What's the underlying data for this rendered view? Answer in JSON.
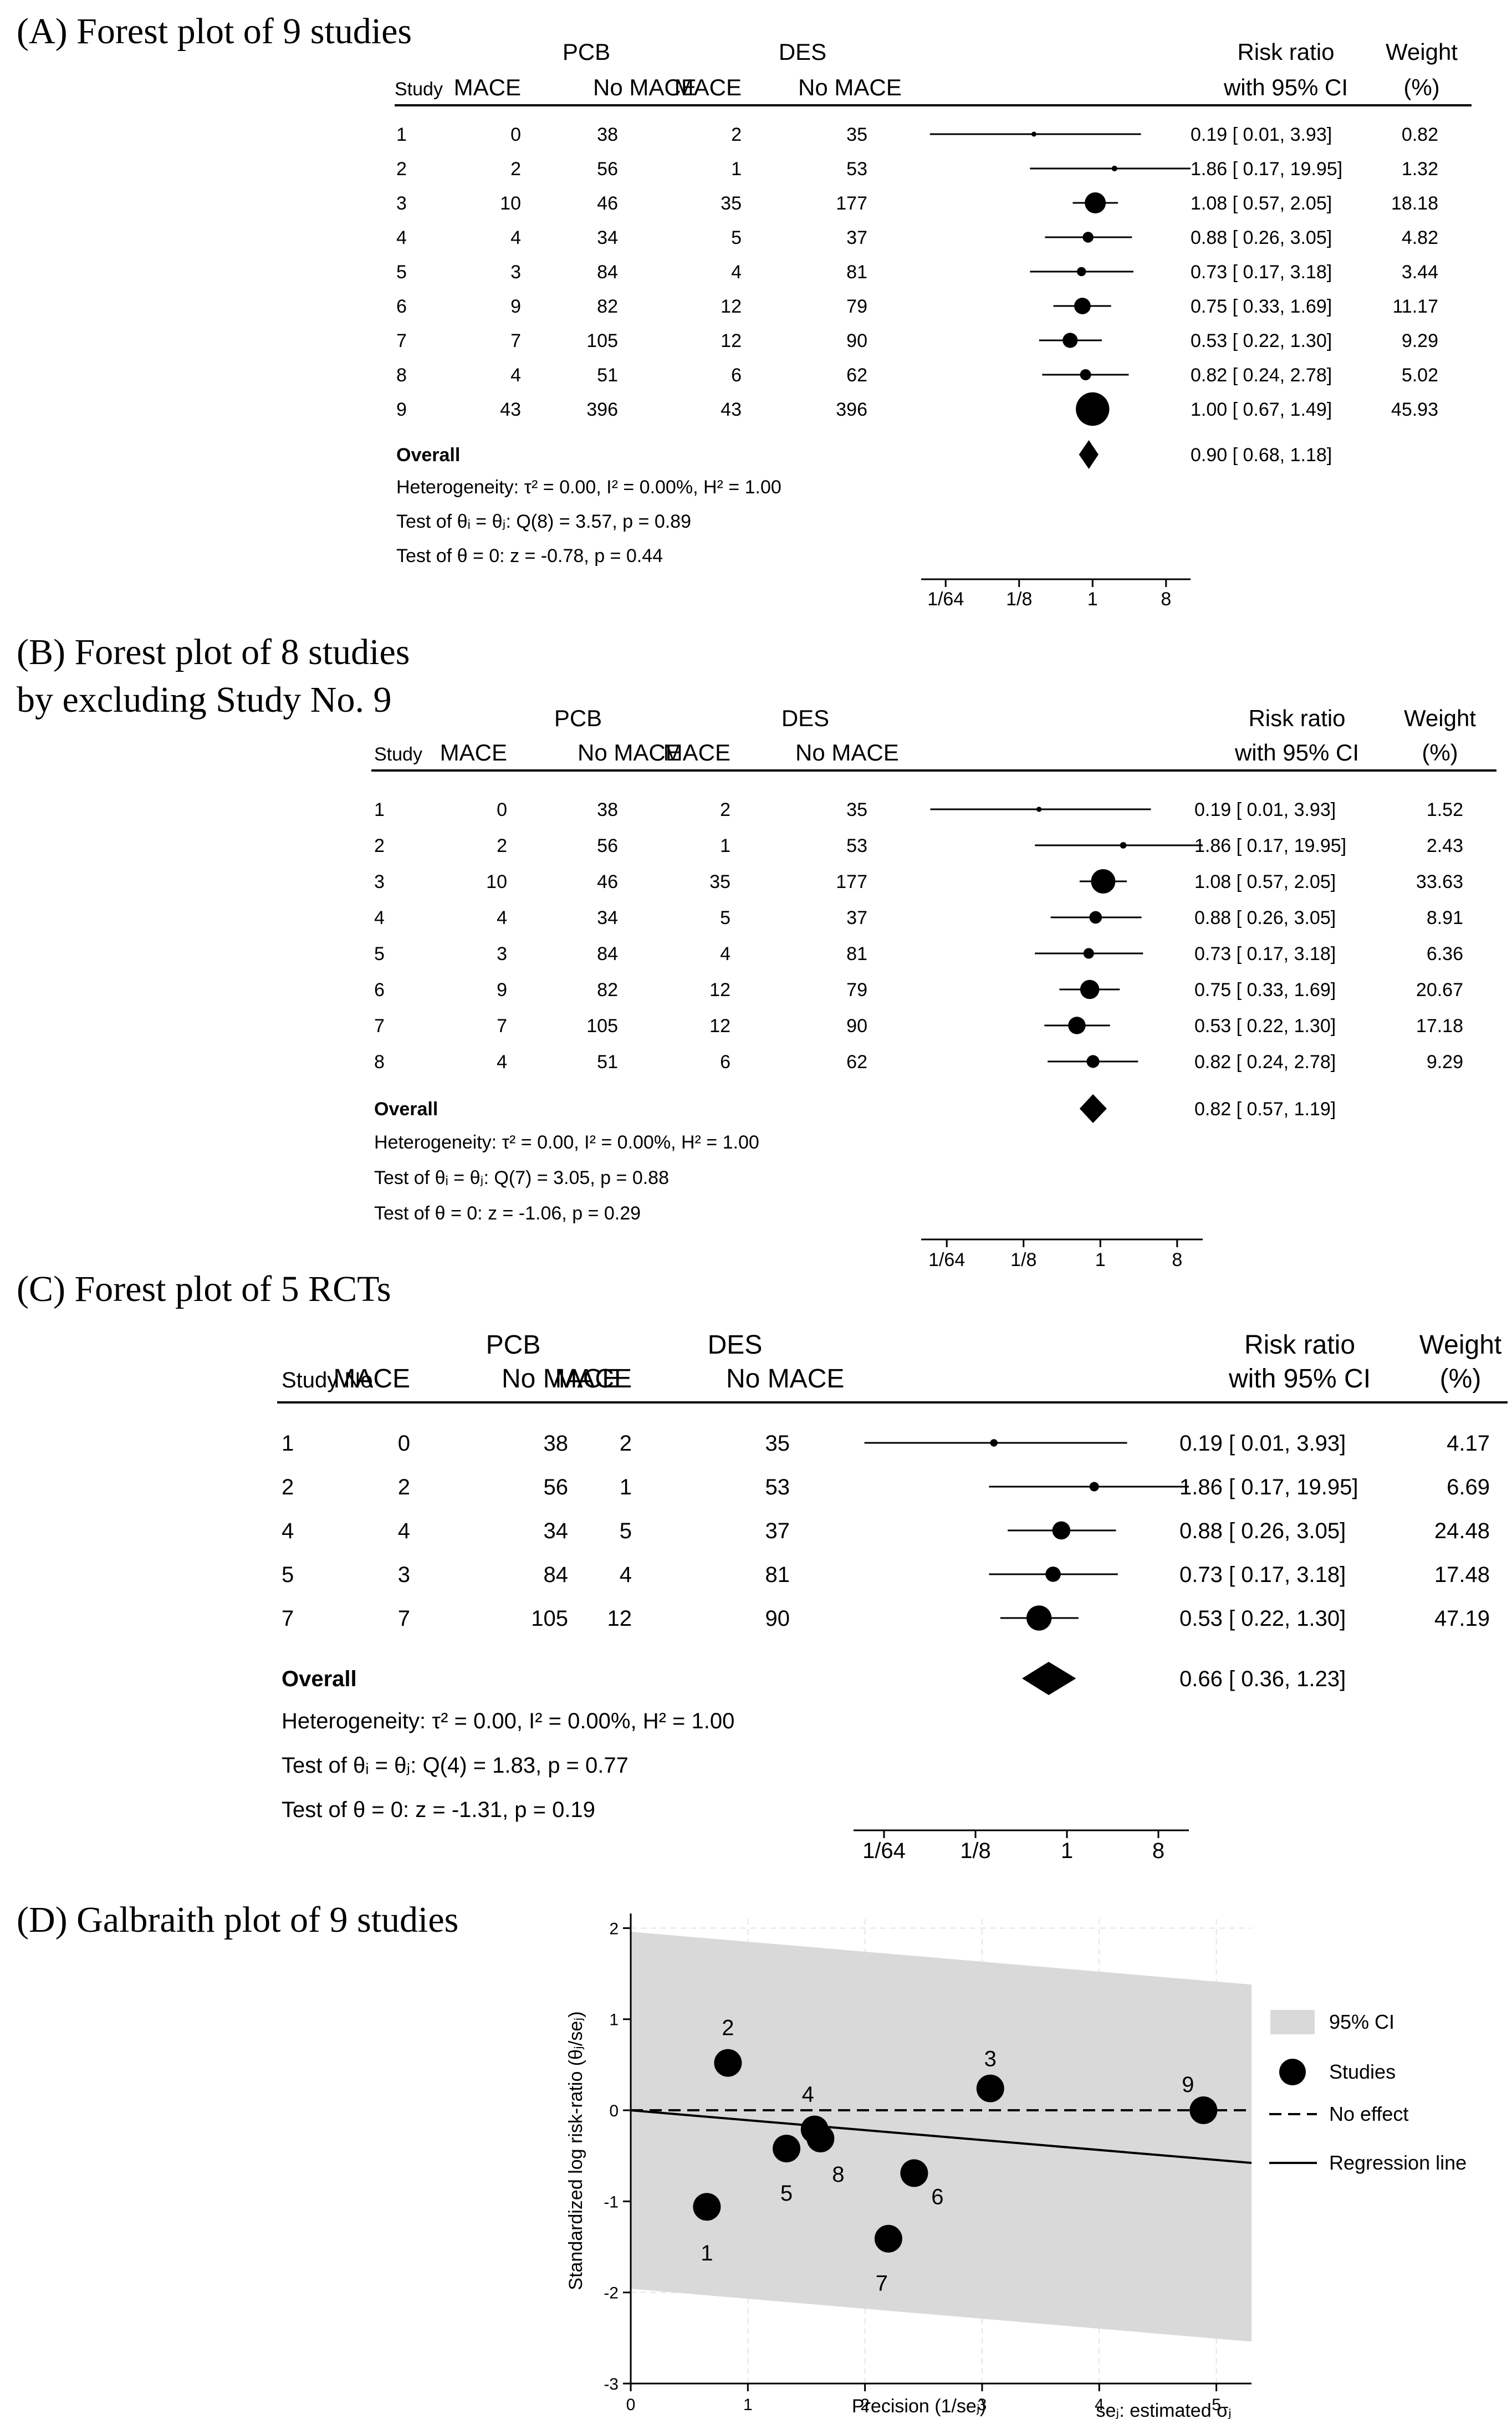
{
  "chart_data": [
    {
      "type": "forest",
      "panel_title": "(A) Forest plot of 9 studies",
      "group_headers": {
        "pcb": "PCB",
        "des": "DES"
      },
      "columns": {
        "study": "Study",
        "pcb_mace": "MACE",
        "pcb_no_mace": "No MACE",
        "des_mace": "MACE",
        "des_no_mace": "No MACE",
        "rr_line1": "Risk ratio",
        "rr_line2": "with 95% CI",
        "wt_line1": "Weight",
        "wt_line2": "(%)"
      },
      "studies": [
        {
          "study": "1",
          "pcb_mace": "0",
          "pcb_no_mace": "38",
          "des_mace": "2",
          "des_no_mace": "35",
          "rr": 0.19,
          "lo": 0.01,
          "hi": 3.93,
          "rr_text": "0.19 [ 0.01,    3.93]",
          "weight": 0.82,
          "weight_text": "0.82"
        },
        {
          "study": "2",
          "pcb_mace": "2",
          "pcb_no_mace": "56",
          "des_mace": "1",
          "des_no_mace": "53",
          "rr": 1.86,
          "lo": 0.17,
          "hi": 19.95,
          "rr_text": "1.86 [ 0.17,  19.95]",
          "weight": 1.32,
          "weight_text": "1.32"
        },
        {
          "study": "3",
          "pcb_mace": "10",
          "pcb_no_mace": "46",
          "des_mace": "35",
          "des_no_mace": "177",
          "rr": 1.08,
          "lo": 0.57,
          "hi": 2.05,
          "rr_text": "1.08 [ 0.57,    2.05]",
          "weight": 18.18,
          "weight_text": "18.18"
        },
        {
          "study": "4",
          "pcb_mace": "4",
          "pcb_no_mace": "34",
          "des_mace": "5",
          "des_no_mace": "37",
          "rr": 0.88,
          "lo": 0.26,
          "hi": 3.05,
          "rr_text": "0.88 [ 0.26,    3.05]",
          "weight": 4.82,
          "weight_text": "4.82"
        },
        {
          "study": "5",
          "pcb_mace": "3",
          "pcb_no_mace": "84",
          "des_mace": "4",
          "des_no_mace": "81",
          "rr": 0.73,
          "lo": 0.17,
          "hi": 3.18,
          "rr_text": "0.73 [ 0.17,    3.18]",
          "weight": 3.44,
          "weight_text": "3.44"
        },
        {
          "study": "6",
          "pcb_mace": "9",
          "pcb_no_mace": "82",
          "des_mace": "12",
          "des_no_mace": "79",
          "rr": 0.75,
          "lo": 0.33,
          "hi": 1.69,
          "rr_text": "0.75 [ 0.33,    1.69]",
          "weight": 11.17,
          "weight_text": "11.17"
        },
        {
          "study": "7",
          "pcb_mace": "7",
          "pcb_no_mace": "105",
          "des_mace": "12",
          "des_no_mace": "90",
          "rr": 0.53,
          "lo": 0.22,
          "hi": 1.3,
          "rr_text": "0.53 [ 0.22,    1.30]",
          "weight": 9.29,
          "weight_text": "9.29"
        },
        {
          "study": "8",
          "pcb_mace": "4",
          "pcb_no_mace": "51",
          "des_mace": "6",
          "des_no_mace": "62",
          "rr": 0.82,
          "lo": 0.24,
          "hi": 2.78,
          "rr_text": "0.82 [ 0.24,    2.78]",
          "weight": 5.02,
          "weight_text": "5.02"
        },
        {
          "study": "9",
          "pcb_mace": "43",
          "pcb_no_mace": "396",
          "des_mace": "43",
          "des_no_mace": "396",
          "rr": 1.0,
          "lo": 0.67,
          "hi": 1.49,
          "rr_text": "1.00 [ 0.67,    1.49]",
          "weight": 45.93,
          "weight_text": "45.93"
        }
      ],
      "overall": {
        "label": "Overall",
        "rr": 0.9,
        "lo": 0.68,
        "hi": 1.18,
        "rr_text": "0.90 [ 0.68,    1.18]"
      },
      "stats": [
        "Heterogeneity: τ² = 0.00, I² = 0.00%, H² = 1.00",
        "Test of θᵢ = θⱼ: Q(8) = 3.57, p = 0.89",
        "Test of θ = 0: z = -0.78, p = 0.44"
      ],
      "axis": {
        "scale": "log2",
        "range": [
          0.0078125,
          16
        ],
        "ticks": [
          0.015625,
          0.125,
          1,
          8
        ],
        "tick_labels": [
          "1/64",
          "1/8",
          "1",
          "8"
        ]
      }
    },
    {
      "type": "forest",
      "panel_title": "(B) Forest plot of 8 studies",
      "panel_title_line2": "by excluding Study No. 9",
      "group_headers": {
        "pcb": "PCB",
        "des": "DES"
      },
      "columns": {
        "study": "Study",
        "pcb_mace": "MACE",
        "pcb_no_mace": "No MACE",
        "des_mace": "MACE",
        "des_no_mace": "No MACE",
        "rr_line1": "Risk ratio",
        "rr_line2": "with 95% CI",
        "wt_line1": "Weight",
        "wt_line2": "(%)"
      },
      "studies": [
        {
          "study": "1",
          "pcb_mace": "0",
          "pcb_no_mace": "38",
          "des_mace": "2",
          "des_no_mace": "35",
          "rr": 0.19,
          "lo": 0.01,
          "hi": 3.93,
          "rr_text": "0.19 [ 0.01,    3.93]",
          "weight": 1.52,
          "weight_text": "1.52"
        },
        {
          "study": "2",
          "pcb_mace": "2",
          "pcb_no_mace": "56",
          "des_mace": "1",
          "des_no_mace": "53",
          "rr": 1.86,
          "lo": 0.17,
          "hi": 19.95,
          "rr_text": "1.86 [ 0.17,  19.95]",
          "weight": 2.43,
          "weight_text": "2.43"
        },
        {
          "study": "3",
          "pcb_mace": "10",
          "pcb_no_mace": "46",
          "des_mace": "35",
          "des_no_mace": "177",
          "rr": 1.08,
          "lo": 0.57,
          "hi": 2.05,
          "rr_text": "1.08 [ 0.57,    2.05]",
          "weight": 33.63,
          "weight_text": "33.63"
        },
        {
          "study": "4",
          "pcb_mace": "4",
          "pcb_no_mace": "34",
          "des_mace": "5",
          "des_no_mace": "37",
          "rr": 0.88,
          "lo": 0.26,
          "hi": 3.05,
          "rr_text": "0.88 [ 0.26,    3.05]",
          "weight": 8.91,
          "weight_text": "8.91"
        },
        {
          "study": "5",
          "pcb_mace": "3",
          "pcb_no_mace": "84",
          "des_mace": "4",
          "des_no_mace": "81",
          "rr": 0.73,
          "lo": 0.17,
          "hi": 3.18,
          "rr_text": "0.73 [ 0.17,    3.18]",
          "weight": 6.36,
          "weight_text": "6.36"
        },
        {
          "study": "6",
          "pcb_mace": "9",
          "pcb_no_mace": "82",
          "des_mace": "12",
          "des_no_mace": "79",
          "rr": 0.75,
          "lo": 0.33,
          "hi": 1.69,
          "rr_text": "0.75 [ 0.33,    1.69]",
          "weight": 20.67,
          "weight_text": "20.67"
        },
        {
          "study": "7",
          "pcb_mace": "7",
          "pcb_no_mace": "105",
          "des_mace": "12",
          "des_no_mace": "90",
          "rr": 0.53,
          "lo": 0.22,
          "hi": 1.3,
          "rr_text": "0.53 [ 0.22,    1.30]",
          "weight": 17.18,
          "weight_text": "17.18"
        },
        {
          "study": "8",
          "pcb_mace": "4",
          "pcb_no_mace": "51",
          "des_mace": "6",
          "des_no_mace": "62",
          "rr": 0.82,
          "lo": 0.24,
          "hi": 2.78,
          "rr_text": "0.82 [ 0.24,    2.78]",
          "weight": 9.29,
          "weight_text": "9.29"
        }
      ],
      "overall": {
        "label": "Overall",
        "rr": 0.82,
        "lo": 0.57,
        "hi": 1.19,
        "rr_text": "0.82 [ 0.57,    1.19]"
      },
      "stats": [
        "Heterogeneity: τ² = 0.00, I² = 0.00%, H² = 1.00",
        "Test of θᵢ = θⱼ: Q(7) = 3.05, p = 0.88",
        "Test of θ = 0: z = -1.06, p = 0.29"
      ],
      "axis": {
        "scale": "log2",
        "range": [
          0.0078125,
          16
        ],
        "ticks": [
          0.015625,
          0.125,
          1,
          8
        ],
        "tick_labels": [
          "1/64",
          "1/8",
          "1",
          "8"
        ]
      }
    },
    {
      "type": "forest",
      "panel_title": "(C) Forest plot of 5 RCTs",
      "group_headers": {
        "pcb": "PCB",
        "des": "DES"
      },
      "columns": {
        "study": "Study No",
        "pcb_mace": "MACE",
        "pcb_no_mace": "No MACE",
        "des_mace": "MACE",
        "des_no_mace": "No MACE",
        "rr_line1": "Risk ratio",
        "rr_line2": "with 95% CI",
        "wt_line1": "Weight",
        "wt_line2": "(%)"
      },
      "studies": [
        {
          "study": "1",
          "pcb_mace": "0",
          "pcb_no_mace": "38",
          "des_mace": "2",
          "des_no_mace": "35",
          "rr": 0.19,
          "lo": 0.01,
          "hi": 3.93,
          "rr_text": "0.19 [ 0.01,    3.93]",
          "weight": 4.17,
          "weight_text": "4.17"
        },
        {
          "study": "2",
          "pcb_mace": "2",
          "pcb_no_mace": "56",
          "des_mace": "1",
          "des_no_mace": "53",
          "rr": 1.86,
          "lo": 0.17,
          "hi": 19.95,
          "rr_text": "1.86 [ 0.17,  19.95]",
          "weight": 6.69,
          "weight_text": "6.69"
        },
        {
          "study": "4",
          "pcb_mace": "4",
          "pcb_no_mace": "34",
          "des_mace": "5",
          "des_no_mace": "37",
          "rr": 0.88,
          "lo": 0.26,
          "hi": 3.05,
          "rr_text": "0.88 [ 0.26,    3.05]",
          "weight": 24.48,
          "weight_text": "24.48"
        },
        {
          "study": "5",
          "pcb_mace": "3",
          "pcb_no_mace": "84",
          "des_mace": "4",
          "des_no_mace": "81",
          "rr": 0.73,
          "lo": 0.17,
          "hi": 3.18,
          "rr_text": "0.73 [ 0.17,    3.18]",
          "weight": 17.48,
          "weight_text": "17.48"
        },
        {
          "study": "7",
          "pcb_mace": "7",
          "pcb_no_mace": "105",
          "des_mace": "12",
          "des_no_mace": "90",
          "rr": 0.53,
          "lo": 0.22,
          "hi": 1.3,
          "rr_text": "0.53 [ 0.22,    1.30]",
          "weight": 47.19,
          "weight_text": "47.19"
        }
      ],
      "overall": {
        "label": "Overall",
        "rr": 0.66,
        "lo": 0.36,
        "hi": 1.23,
        "rr_text": "0.66 [ 0.36,    1.23]"
      },
      "stats": [
        "Heterogeneity: τ² = 0.00, I² = 0.00%, H² = 1.00",
        "Test of θᵢ = θⱼ: Q(4) = 1.83, p = 0.77",
        "Test of θ = 0: z = -1.31, p = 0.19"
      ],
      "axis": {
        "scale": "log2",
        "range": [
          0.0078125,
          16
        ],
        "ticks": [
          0.015625,
          0.125,
          1,
          8
        ],
        "tick_labels": [
          "1/64",
          "1/8",
          "1",
          "8"
        ]
      }
    },
    {
      "type": "scatter",
      "panel_title": "(D) Galbraith plot of 9 studies",
      "xlabel": "Precision (1/seⱼ)",
      "ylabel": "Standardized log risk-ratio (θⱼ/seⱼ)",
      "note": "seⱼ: estimated σⱼ",
      "xlim": [
        0,
        5.3
      ],
      "ylim": [
        -3,
        2.1
      ],
      "xticks": [
        0,
        1,
        2,
        3,
        4,
        5
      ],
      "yticks": [
        -3,
        -2,
        -1,
        0,
        1,
        2
      ],
      "points": [
        {
          "label": "1",
          "x": 0.65,
          "y": -1.06
        },
        {
          "label": "2",
          "x": 0.83,
          "y": 0.52
        },
        {
          "label": "3",
          "x": 3.07,
          "y": 0.24
        },
        {
          "label": "4",
          "x": 1.57,
          "y": -0.21
        },
        {
          "label": "5",
          "x": 1.33,
          "y": -0.42
        },
        {
          "label": "6",
          "x": 2.42,
          "y": -0.69
        },
        {
          "label": "7",
          "x": 2.2,
          "y": -1.41
        },
        {
          "label": "8",
          "x": 1.62,
          "y": -0.31
        },
        {
          "label": "9",
          "x": 4.89,
          "y": 0.0
        }
      ],
      "ci_band": {
        "upper_at_0": 1.96,
        "upper_at_5_3": 1.38,
        "lower_at_0": -1.96,
        "lower_at_5_3": -2.54
      },
      "no_effect": 0,
      "regression": {
        "intercept": 0,
        "slope": -0.109
      },
      "legend": [
        "95% CI",
        "Studies",
        "No effect",
        "Regression line"
      ]
    }
  ]
}
